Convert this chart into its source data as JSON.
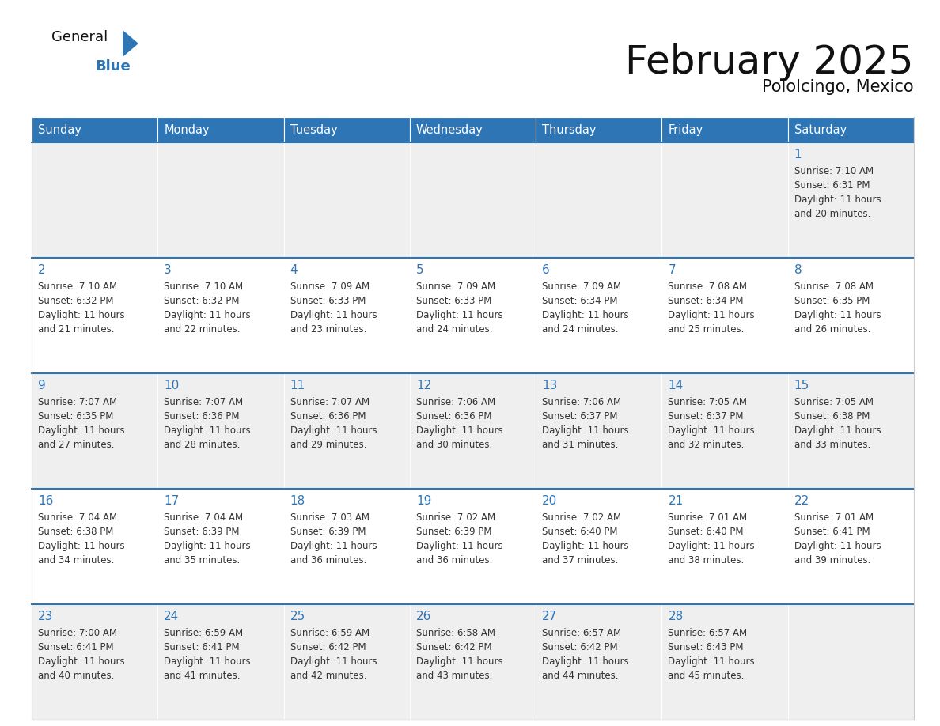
{
  "title": "February 2025",
  "subtitle": "Pololcingo, Mexico",
  "header_color": "#2e75b6",
  "header_text_color": "#ffffff",
  "days_of_week": [
    "Sunday",
    "Monday",
    "Tuesday",
    "Wednesday",
    "Thursday",
    "Friday",
    "Saturday"
  ],
  "bg_color": "#ffffff",
  "cell_bg_gray": "#efefef",
  "cell_bg_white": "#ffffff",
  "day_number_color": "#2e75b6",
  "text_color": "#333333",
  "separator_color": "#2e75b6",
  "calendar_data": [
    [
      null,
      null,
      null,
      null,
      null,
      null,
      {
        "day": "1",
        "sunrise": "7:10 AM",
        "sunset": "6:31 PM",
        "daylight_line1": "Daylight: 11 hours",
        "daylight_line2": "and 20 minutes."
      }
    ],
    [
      {
        "day": "2",
        "sunrise": "7:10 AM",
        "sunset": "6:32 PM",
        "daylight_line1": "Daylight: 11 hours",
        "daylight_line2": "and 21 minutes."
      },
      {
        "day": "3",
        "sunrise": "7:10 AM",
        "sunset": "6:32 PM",
        "daylight_line1": "Daylight: 11 hours",
        "daylight_line2": "and 22 minutes."
      },
      {
        "day": "4",
        "sunrise": "7:09 AM",
        "sunset": "6:33 PM",
        "daylight_line1": "Daylight: 11 hours",
        "daylight_line2": "and 23 minutes."
      },
      {
        "day": "5",
        "sunrise": "7:09 AM",
        "sunset": "6:33 PM",
        "daylight_line1": "Daylight: 11 hours",
        "daylight_line2": "and 24 minutes."
      },
      {
        "day": "6",
        "sunrise": "7:09 AM",
        "sunset": "6:34 PM",
        "daylight_line1": "Daylight: 11 hours",
        "daylight_line2": "and 24 minutes."
      },
      {
        "day": "7",
        "sunrise": "7:08 AM",
        "sunset": "6:34 PM",
        "daylight_line1": "Daylight: 11 hours",
        "daylight_line2": "and 25 minutes."
      },
      {
        "day": "8",
        "sunrise": "7:08 AM",
        "sunset": "6:35 PM",
        "daylight_line1": "Daylight: 11 hours",
        "daylight_line2": "and 26 minutes."
      }
    ],
    [
      {
        "day": "9",
        "sunrise": "7:07 AM",
        "sunset": "6:35 PM",
        "daylight_line1": "Daylight: 11 hours",
        "daylight_line2": "and 27 minutes."
      },
      {
        "day": "10",
        "sunrise": "7:07 AM",
        "sunset": "6:36 PM",
        "daylight_line1": "Daylight: 11 hours",
        "daylight_line2": "and 28 minutes."
      },
      {
        "day": "11",
        "sunrise": "7:07 AM",
        "sunset": "6:36 PM",
        "daylight_line1": "Daylight: 11 hours",
        "daylight_line2": "and 29 minutes."
      },
      {
        "day": "12",
        "sunrise": "7:06 AM",
        "sunset": "6:36 PM",
        "daylight_line1": "Daylight: 11 hours",
        "daylight_line2": "and 30 minutes."
      },
      {
        "day": "13",
        "sunrise": "7:06 AM",
        "sunset": "6:37 PM",
        "daylight_line1": "Daylight: 11 hours",
        "daylight_line2": "and 31 minutes."
      },
      {
        "day": "14",
        "sunrise": "7:05 AM",
        "sunset": "6:37 PM",
        "daylight_line1": "Daylight: 11 hours",
        "daylight_line2": "and 32 minutes."
      },
      {
        "day": "15",
        "sunrise": "7:05 AM",
        "sunset": "6:38 PM",
        "daylight_line1": "Daylight: 11 hours",
        "daylight_line2": "and 33 minutes."
      }
    ],
    [
      {
        "day": "16",
        "sunrise": "7:04 AM",
        "sunset": "6:38 PM",
        "daylight_line1": "Daylight: 11 hours",
        "daylight_line2": "and 34 minutes."
      },
      {
        "day": "17",
        "sunrise": "7:04 AM",
        "sunset": "6:39 PM",
        "daylight_line1": "Daylight: 11 hours",
        "daylight_line2": "and 35 minutes."
      },
      {
        "day": "18",
        "sunrise": "7:03 AM",
        "sunset": "6:39 PM",
        "daylight_line1": "Daylight: 11 hours",
        "daylight_line2": "and 36 minutes."
      },
      {
        "day": "19",
        "sunrise": "7:02 AM",
        "sunset": "6:39 PM",
        "daylight_line1": "Daylight: 11 hours",
        "daylight_line2": "and 36 minutes."
      },
      {
        "day": "20",
        "sunrise": "7:02 AM",
        "sunset": "6:40 PM",
        "daylight_line1": "Daylight: 11 hours",
        "daylight_line2": "and 37 minutes."
      },
      {
        "day": "21",
        "sunrise": "7:01 AM",
        "sunset": "6:40 PM",
        "daylight_line1": "Daylight: 11 hours",
        "daylight_line2": "and 38 minutes."
      },
      {
        "day": "22",
        "sunrise": "7:01 AM",
        "sunset": "6:41 PM",
        "daylight_line1": "Daylight: 11 hours",
        "daylight_line2": "and 39 minutes."
      }
    ],
    [
      {
        "day": "23",
        "sunrise": "7:00 AM",
        "sunset": "6:41 PM",
        "daylight_line1": "Daylight: 11 hours",
        "daylight_line2": "and 40 minutes."
      },
      {
        "day": "24",
        "sunrise": "6:59 AM",
        "sunset": "6:41 PM",
        "daylight_line1": "Daylight: 11 hours",
        "daylight_line2": "and 41 minutes."
      },
      {
        "day": "25",
        "sunrise": "6:59 AM",
        "sunset": "6:42 PM",
        "daylight_line1": "Daylight: 11 hours",
        "daylight_line2": "and 42 minutes."
      },
      {
        "day": "26",
        "sunrise": "6:58 AM",
        "sunset": "6:42 PM",
        "daylight_line1": "Daylight: 11 hours",
        "daylight_line2": "and 43 minutes."
      },
      {
        "day": "27",
        "sunrise": "6:57 AM",
        "sunset": "6:42 PM",
        "daylight_line1": "Daylight: 11 hours",
        "daylight_line2": "and 44 minutes."
      },
      {
        "day": "28",
        "sunrise": "6:57 AM",
        "sunset": "6:43 PM",
        "daylight_line1": "Daylight: 11 hours",
        "daylight_line2": "and 45 minutes."
      },
      null
    ]
  ]
}
